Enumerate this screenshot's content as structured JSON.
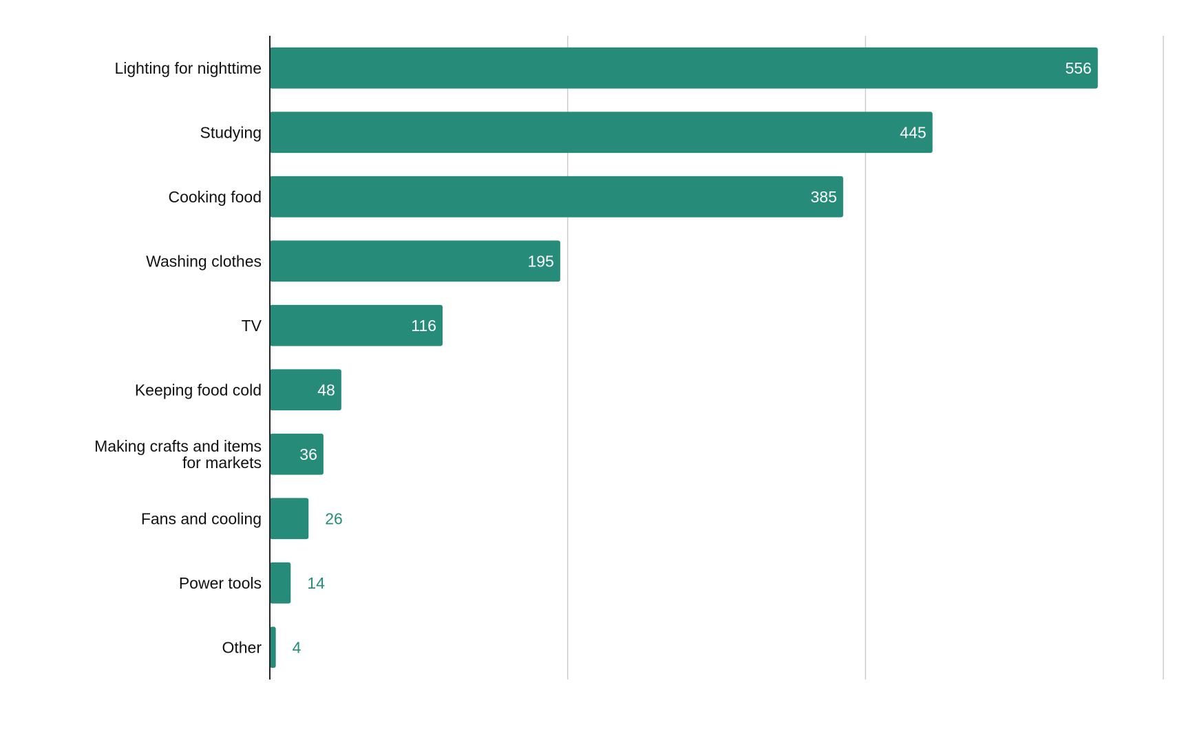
{
  "chart_data": {
    "type": "bar",
    "orientation": "horizontal",
    "categories": [
      "Lighting for nighttime",
      "Studying",
      "Cooking food",
      "Washing clothes",
      "TV",
      "Keeping food cold",
      "Making crafts and items for markets",
      "Fans and cooling",
      "Power tools",
      "Other"
    ],
    "values": [
      556,
      445,
      385,
      195,
      116,
      48,
      36,
      26,
      14,
      4
    ],
    "title": "",
    "xlabel": "",
    "ylabel": "",
    "xlim": [
      0,
      600
    ],
    "grid": true,
    "legend": "none"
  },
  "colors": {
    "bar": "#268c79",
    "label_inside": "#ffffff",
    "label_outside": "#268c79",
    "grid": "#cccccc",
    "axis": "#222222"
  }
}
